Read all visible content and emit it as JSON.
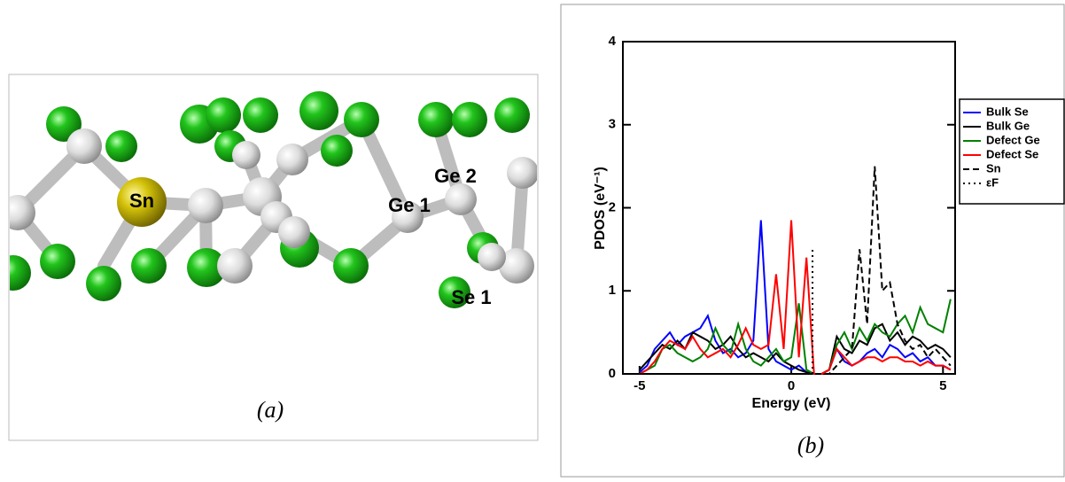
{
  "panel_a": {
    "labels": [
      "Sn",
      "Ge 1",
      "Ge 2",
      "Se 1"
    ],
    "caption": "(a)"
  },
  "chart_data": {
    "type": "line",
    "caption": "(b)",
    "xlabel": "Energy (eV)",
    "ylabel": "PDOS (eV⁻¹)",
    "xlim": [
      -5.55,
      5.4
    ],
    "ylim": [
      0,
      4
    ],
    "xticks": [
      -5,
      0,
      5
    ],
    "yticks": [
      0,
      1,
      2,
      3,
      4
    ],
    "legend": "outside-right",
    "x": [
      -5,
      -4.75,
      -4.5,
      -4.25,
      -4,
      -3.75,
      -3.5,
      -3.25,
      -3,
      -2.75,
      -2.5,
      -2.25,
      -2,
      -1.75,
      -1.5,
      -1.25,
      -1,
      -0.75,
      -0.5,
      -0.25,
      0,
      0.25,
      0.5,
      0.75,
      1,
      1.25,
      1.5,
      1.75,
      2,
      2.25,
      2.5,
      2.75,
      3,
      3.25,
      3.5,
      3.75,
      4,
      4.25,
      4.5,
      4.75,
      5,
      5.25
    ],
    "series": [
      {
        "name": "Bulk Se",
        "color": "#0000ff",
        "dash": "solid",
        "values": [
          0.02,
          0.1,
          0.3,
          0.4,
          0.5,
          0.35,
          0.45,
          0.5,
          0.55,
          0.7,
          0.4,
          0.25,
          0.3,
          0.2,
          0.25,
          0.4,
          1.85,
          0.3,
          0.15,
          0.1,
          0.05,
          0.1,
          0.02,
          0,
          0,
          0.05,
          0.3,
          0.15,
          0.1,
          0.15,
          0.25,
          0.3,
          0.2,
          0.35,
          0.3,
          0.2,
          0.25,
          0.15,
          0.2,
          0.1,
          0.1,
          0.05
        ]
      },
      {
        "name": "Bulk Ge",
        "color": "#000000",
        "dash": "solid",
        "values": [
          0.05,
          0.15,
          0.25,
          0.35,
          0.3,
          0.4,
          0.3,
          0.5,
          0.45,
          0.4,
          0.3,
          0.35,
          0.45,
          0.3,
          0.2,
          0.25,
          0.2,
          0.15,
          0.25,
          0.15,
          0.1,
          0.05,
          0.02,
          0,
          0,
          0.05,
          0.45,
          0.3,
          0.25,
          0.4,
          0.35,
          0.55,
          0.6,
          0.4,
          0.5,
          0.35,
          0.45,
          0.4,
          0.3,
          0.35,
          0.3,
          0.2
        ]
      },
      {
        "name": "Defect Ge",
        "color": "#008000",
        "dash": "solid",
        "values": [
          0,
          0.05,
          0.1,
          0.3,
          0.35,
          0.25,
          0.2,
          0.15,
          0.2,
          0.3,
          0.55,
          0.35,
          0.25,
          0.6,
          0.3,
          0.15,
          0.1,
          0.2,
          0.3,
          0.15,
          0.2,
          0.85,
          0.05,
          0,
          0,
          0.05,
          0.35,
          0.5,
          0.3,
          0.55,
          0.4,
          0.6,
          0.5,
          0.45,
          0.6,
          0.7,
          0.5,
          0.8,
          0.6,
          0.55,
          0.5,
          0.9
        ]
      },
      {
        "name": "Defect Se",
        "color": "#ff0000",
        "dash": "solid",
        "values": [
          0,
          0.05,
          0.15,
          0.3,
          0.4,
          0.35,
          0.3,
          0.45,
          0.3,
          0.2,
          0.25,
          0.3,
          0.2,
          0.35,
          0.55,
          0.35,
          0.3,
          0.35,
          1.2,
          0.3,
          1.85,
          0.2,
          1.4,
          0,
          0,
          0.05,
          0.3,
          0.2,
          0.1,
          0.15,
          0.2,
          0.2,
          0.15,
          0.2,
          0.2,
          0.15,
          0.15,
          0.1,
          0.15,
          0.1,
          0.1,
          0.05
        ]
      },
      {
        "name": "Sn",
        "color": "#000000",
        "dash": "dashed",
        "values": [
          0,
          0,
          0,
          0,
          0,
          0,
          0,
          0,
          0,
          0,
          0,
          0,
          0,
          0,
          0,
          0,
          0,
          0,
          0,
          0,
          0,
          0,
          0,
          0,
          0,
          0,
          0.1,
          0.2,
          0.3,
          1.5,
          0.6,
          2.5,
          1.0,
          1.1,
          0.6,
          0.4,
          0.3,
          0.35,
          0.2,
          0.3,
          0.2,
          0.1
        ]
      }
    ],
    "fermi": {
      "name": "εF",
      "color": "#000000",
      "dash": "dotted",
      "x": 0.7,
      "ymax": 1.5
    }
  }
}
